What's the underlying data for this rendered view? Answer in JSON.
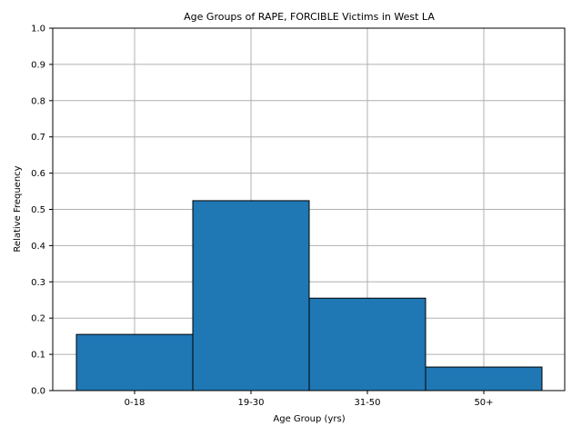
{
  "chart_data": {
    "type": "bar",
    "title": "Age Groups of RAPE, FORCIBLE Victims in West LA",
    "xlabel": "Age Group (yrs)",
    "ylabel": "Relative Frequency",
    "categories": [
      "0-18",
      "19-30",
      "31-50",
      "50+"
    ],
    "values": [
      0.155,
      0.524,
      0.255,
      0.065
    ],
    "ylim": [
      0,
      1.0
    ],
    "yticks": [
      "0.0",
      "0.1",
      "0.2",
      "0.3",
      "0.4",
      "0.5",
      "0.6",
      "0.7",
      "0.8",
      "0.9",
      "1.0"
    ],
    "grid": true,
    "bar_color": "#1f77b4",
    "edge_color": "#000000"
  }
}
